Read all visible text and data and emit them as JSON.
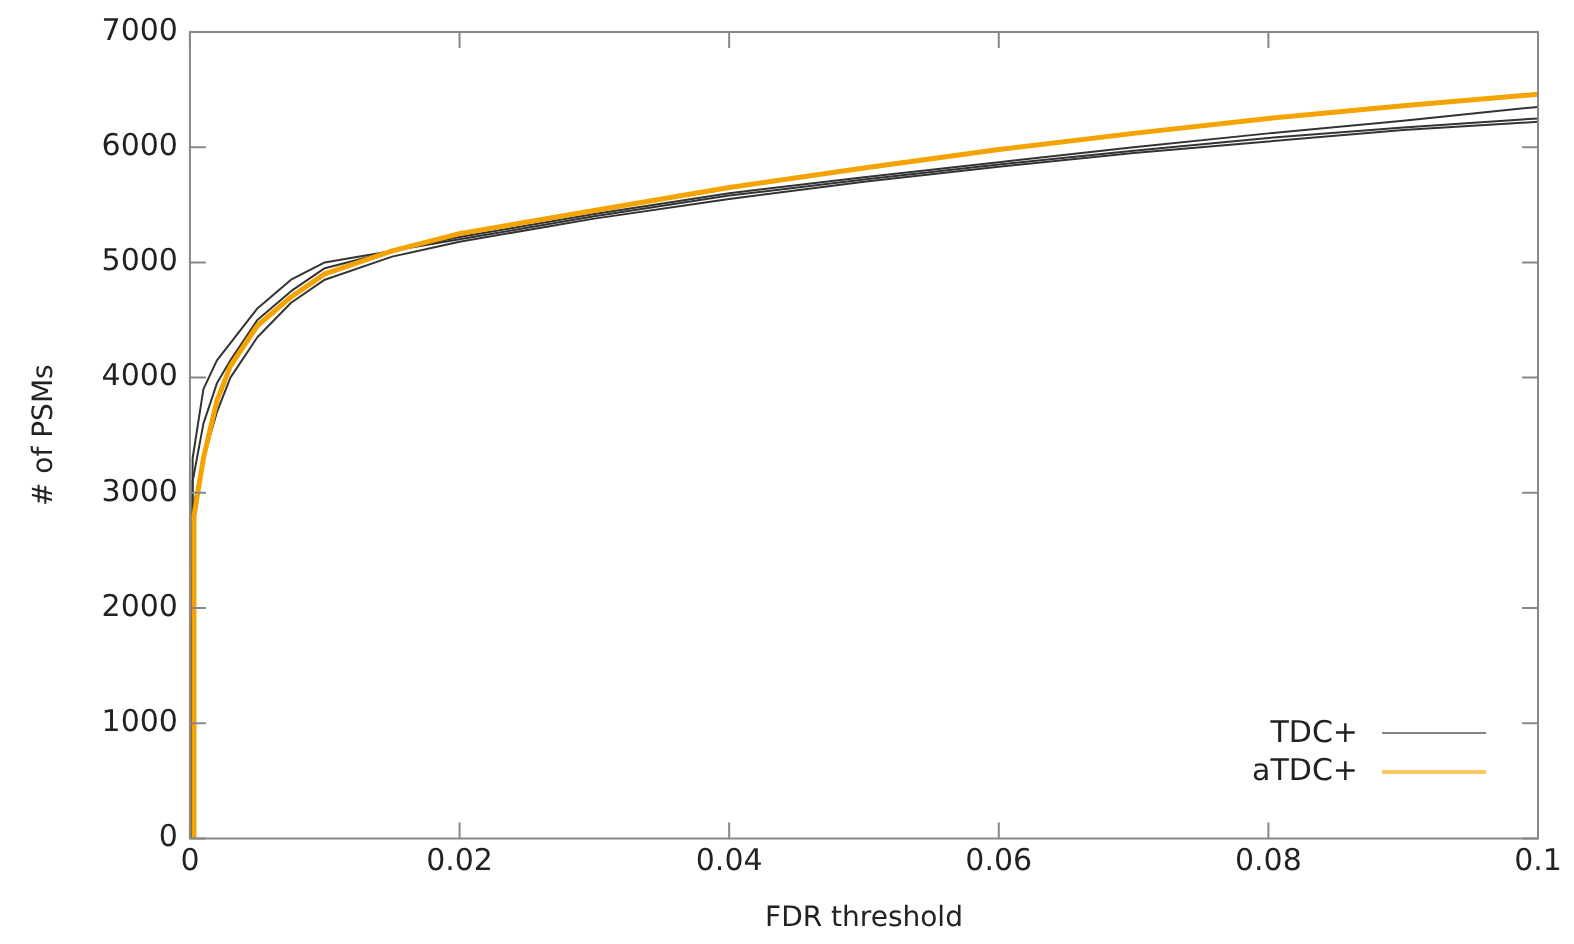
{
  "chart_data": {
    "type": "line",
    "xlabel": "FDR threshold",
    "ylabel": "# of PSMs",
    "xlim": [
      0,
      0.1
    ],
    "xticks": [
      0,
      0.02,
      0.04,
      0.06,
      0.08,
      0.1
    ],
    "ylim": [
      0,
      7000
    ],
    "yticks": [
      0,
      1000,
      2000,
      3000,
      4000,
      5000,
      6000,
      7000
    ],
    "grid": false,
    "legend": "bottom right",
    "marker": "none",
    "line_style": "solid",
    "series": [
      {
        "name": "TDC+",
        "color": "#333333",
        "x": [
          0.0001,
          0.0002,
          0.001,
          0.002,
          0.003,
          0.005,
          0.0075,
          0.01,
          0.015,
          0.02,
          0.03,
          0.04,
          0.05,
          0.06,
          0.07,
          0.08,
          0.09,
          0.1
        ],
        "values": [
          0,
          3300,
          3900,
          4150,
          4300,
          4600,
          4850,
          5000,
          5100,
          5200,
          5400,
          5580,
          5720,
          5850,
          5970,
          6080,
          6170,
          6250
        ]
      },
      {
        "color": "#333333",
        "x": [
          0.0002,
          0.0003,
          0.001,
          0.002,
          0.003,
          0.005,
          0.0075,
          0.01,
          0.015,
          0.02,
          0.03,
          0.04,
          0.05,
          0.06,
          0.07,
          0.08,
          0.09,
          0.1
        ],
        "values": [
          0,
          2900,
          3300,
          3700,
          4000,
          4350,
          4650,
          4850,
          5050,
          5180,
          5380,
          5550,
          5700,
          5830,
          5950,
          6050,
          6150,
          6220
        ]
      },
      {
        "color": "#333333",
        "x": [
          0.00015,
          0.0002,
          0.001,
          0.002,
          0.003,
          0.005,
          0.0075,
          0.01,
          0.015,
          0.02,
          0.03,
          0.04,
          0.05,
          0.06,
          0.07,
          0.08,
          0.09,
          0.1
        ],
        "values": [
          0,
          3100,
          3600,
          3950,
          4150,
          4500,
          4750,
          4950,
          5100,
          5220,
          5420,
          5600,
          5740,
          5870,
          6000,
          6120,
          6230,
          6350
        ]
      },
      {
        "name": "aTDC+",
        "color": "#f5a300",
        "x": [
          0.00025,
          0.0003,
          0.001,
          0.002,
          0.003,
          0.005,
          0.0075,
          0.01,
          0.015,
          0.02,
          0.03,
          0.04,
          0.05,
          0.06,
          0.07,
          0.08,
          0.09,
          0.1
        ],
        "values": [
          0,
          2800,
          3300,
          3800,
          4100,
          4450,
          4700,
          4900,
          5100,
          5250,
          5450,
          5650,
          5820,
          5980,
          6120,
          6250,
          6360,
          6460
        ]
      }
    ]
  }
}
